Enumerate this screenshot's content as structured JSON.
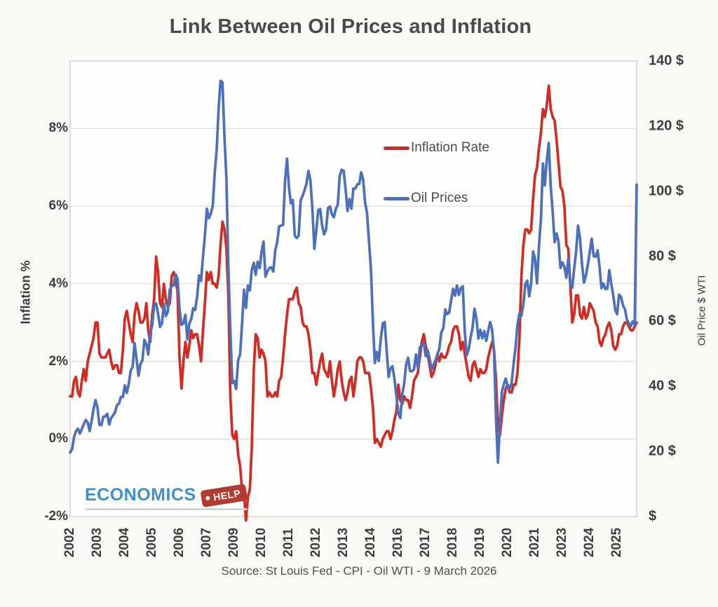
{
  "source_note": "Source: St Louis Fed - CPI - Oil WTI - 9 March 2026",
  "logo": {
    "brand": "ECONOMICS",
    "tag": "HELP"
  },
  "colors": {
    "inflation_line": "#d02b24",
    "oil_line": "#4c70ba",
    "logo_blue": "#3e8fcb",
    "logo_tag_red": "#b23a30",
    "grid": "#dadada",
    "frame": "#cfcfcf",
    "plot_fill": "#fefefc"
  },
  "chart_data": {
    "type": "line",
    "title": "Link Between Oil Prices and Inflation",
    "frequency": "monthly",
    "x_start": "2002-01",
    "x_end": "2026-03",
    "grid": "horizontal",
    "legend_position": "inside-top-right",
    "x_tick_labels": [
      "2002",
      "2003",
      "2004",
      "2005",
      "2006",
      "2007",
      "2009",
      "2010",
      "2011",
      "2012",
      "2013",
      "2014",
      "2016",
      "2017",
      "2018",
      "2019",
      "2020",
      "2021",
      "2023",
      "2024",
      "2025"
    ],
    "x_tick_interval_months": 14,
    "left_axis": {
      "label": "Inflation %",
      "min": -2,
      "max": 9.74,
      "tick_values": [
        8,
        6,
        4,
        2,
        0,
        -2
      ],
      "tick_labels": [
        "8%",
        "6%",
        "4%",
        "2%",
        "0%",
        "-2%"
      ]
    },
    "right_axis": {
      "label": "Oil Price $ WTI",
      "min": 0,
      "max": 140,
      "tick_values": [
        140,
        120,
        100,
        80,
        60,
        40,
        20,
        0
      ],
      "tick_labels": [
        "140 $",
        "120 $",
        "100 $",
        "80 $",
        "60 $",
        "40 $",
        "20 $",
        "$"
      ]
    },
    "series": [
      {
        "name": "Inflation Rate",
        "axis": "left",
        "color": "#d02b24",
        "values": [
          1.1,
          1.1,
          1.5,
          1.6,
          1.2,
          1.1,
          1.5,
          1.8,
          1.5,
          2.0,
          2.2,
          2.4,
          2.6,
          3.0,
          3.0,
          2.2,
          2.1,
          2.1,
          2.1,
          2.2,
          2.3,
          2.0,
          1.8,
          1.9,
          1.9,
          1.7,
          1.7,
          2.3,
          3.1,
          3.3,
          3.0,
          2.7,
          2.5,
          3.2,
          3.5,
          3.3,
          3.0,
          3.0,
          3.1,
          3.5,
          2.8,
          2.5,
          3.2,
          3.6,
          4.7,
          4.3,
          3.5,
          3.4,
          4.0,
          3.6,
          3.4,
          3.5,
          4.2,
          4.3,
          4.1,
          3.8,
          2.1,
          1.3,
          2.0,
          2.5,
          2.1,
          2.4,
          2.8,
          2.6,
          2.7,
          2.7,
          2.4,
          2.0,
          2.8,
          3.5,
          4.3,
          4.1,
          4.3,
          4.0,
          4.0,
          3.9,
          4.2,
          5.0,
          5.6,
          5.4,
          4.9,
          3.7,
          1.1,
          0.1,
          0.0,
          0.2,
          -0.4,
          -0.7,
          -1.3,
          -1.4,
          -2.1,
          -1.5,
          -1.3,
          -0.2,
          1.8,
          2.7,
          2.6,
          2.1,
          2.3,
          2.2,
          2.0,
          1.1,
          1.2,
          1.1,
          1.1,
          1.2,
          1.1,
          1.5,
          1.6,
          2.1,
          2.7,
          3.2,
          3.6,
          3.6,
          3.6,
          3.8,
          3.9,
          3.5,
          3.4,
          3.0,
          2.9,
          2.9,
          2.7,
          2.3,
          1.7,
          1.7,
          1.4,
          1.7,
          2.0,
          2.2,
          1.8,
          1.7,
          1.6,
          2.0,
          1.5,
          1.1,
          1.4,
          1.8,
          2.0,
          1.5,
          1.2,
          1.0,
          1.2,
          1.5,
          1.6,
          1.1,
          1.5,
          2.0,
          2.1,
          2.1,
          2.0,
          1.7,
          1.7,
          1.7,
          1.3,
          0.8,
          -0.1,
          0.0,
          -0.1,
          -0.2,
          0.0,
          0.1,
          0.2,
          0.2,
          0.0,
          0.2,
          0.5,
          0.7,
          1.4,
          1.0,
          0.9,
          1.1,
          1.0,
          1.0,
          0.8,
          1.1,
          1.5,
          1.6,
          1.7,
          2.1,
          2.5,
          2.7,
          2.4,
          2.2,
          1.9,
          1.6,
          1.7,
          1.9,
          2.2,
          2.0,
          2.2,
          2.1,
          2.1,
          2.2,
          2.4,
          2.5,
          2.8,
          2.9,
          2.9,
          2.7,
          2.3,
          2.5,
          2.2,
          1.9,
          1.6,
          1.5,
          1.9,
          2.0,
          1.8,
          1.6,
          1.8,
          1.7,
          1.7,
          1.8,
          2.1,
          2.3,
          2.5,
          2.3,
          1.5,
          0.3,
          0.1,
          0.6,
          1.0,
          1.3,
          1.4,
          1.2,
          1.2,
          1.4,
          1.4,
          1.7,
          2.6,
          4.2,
          5.0,
          5.4,
          5.4,
          5.3,
          5.4,
          6.2,
          6.8,
          7.0,
          7.5,
          7.9,
          8.5,
          8.3,
          8.6,
          9.1,
          8.5,
          8.3,
          8.2,
          7.7,
          7.1,
          6.5,
          6.4,
          6.0,
          5.0,
          4.9,
          4.0,
          3.0,
          3.2,
          3.7,
          3.7,
          3.2,
          3.1,
          3.4,
          3.1,
          3.2,
          3.5,
          3.4,
          3.3,
          3.0,
          2.9,
          2.5,
          2.4,
          2.6,
          2.7,
          2.9,
          3.0,
          2.8,
          2.4,
          2.3,
          2.4,
          2.7,
          2.7,
          2.9,
          3.0,
          3.0,
          2.9,
          2.8,
          2.8,
          2.9,
          3.0
        ]
      },
      {
        "name": "Oil Prices",
        "axis": "right",
        "color": "#4c70ba",
        "values": [
          19.7,
          20.7,
          24.4,
          26.3,
          27.0,
          25.5,
          26.9,
          28.4,
          29.7,
          28.9,
          26.3,
          29.4,
          33.0,
          35.8,
          33.5,
          28.2,
          28.1,
          30.7,
          30.8,
          31.6,
          28.3,
          30.3,
          31.1,
          32.1,
          34.3,
          34.7,
          36.8,
          36.7,
          40.3,
          38.0,
          40.7,
          44.9,
          46.0,
          53.3,
          48.5,
          43.3,
          46.8,
          48.0,
          54.3,
          53.0,
          49.8,
          56.4,
          58.7,
          65.0,
          65.5,
          62.4,
          58.3,
          59.4,
          65.5,
          61.6,
          62.9,
          69.7,
          70.9,
          71.0,
          74.4,
          73.1,
          63.9,
          58.9,
          59.4,
          62.0,
          54.5,
          59.3,
          60.6,
          64.0,
          63.5,
          67.5,
          74.1,
          72.4,
          79.9,
          86.2,
          94.6,
          91.7,
          93.0,
          95.4,
          105.5,
          112.6,
          125.4,
          133.9,
          133.4,
          116.7,
          103.9,
          76.7,
          57.4,
          41.0,
          41.7,
          39.2,
          48.0,
          49.8,
          59.2,
          69.7,
          64.1,
          71.0,
          69.5,
          75.8,
          78.0,
          74.3,
          78.3,
          76.4,
          81.3,
          84.5,
          73.7,
          75.4,
          76.4,
          76.6,
          75.3,
          81.9,
          84.3,
          89.2,
          89.4,
          89.6,
          103.0,
          110.0,
          101.3,
          96.3,
          97.3,
          86.3,
          85.6,
          86.4,
          97.2,
          98.6,
          100.3,
          102.3,
          106.2,
          103.3,
          94.7,
          82.3,
          87.9,
          94.1,
          94.5,
          89.5,
          86.7,
          88.2,
          94.8,
          95.3,
          92.9,
          92.0,
          94.5,
          95.8,
          104.7,
          106.6,
          106.3,
          100.5,
          93.9,
          97.6,
          94.6,
          100.8,
          100.8,
          102.1,
          102.2,
          105.8,
          103.6,
          96.5,
          93.2,
          84.4,
          75.8,
          59.3,
          47.2,
          50.6,
          47.8,
          54.5,
          59.3,
          59.8,
          51.2,
          42.9,
          45.5,
          46.2,
          42.4,
          37.2,
          31.7,
          30.3,
          37.6,
          40.8,
          46.7,
          48.8,
          44.7,
          44.7,
          45.2,
          49.8,
          45.7,
          52.0,
          52.5,
          53.5,
          49.3,
          51.1,
          48.5,
          45.2,
          46.6,
          48.0,
          49.8,
          51.6,
          56.6,
          57.9,
          63.7,
          62.2,
          62.7,
          66.3,
          70.0,
          67.9,
          71.0,
          68.1,
          70.2,
          70.8,
          57.0,
          49.5,
          51.4,
          55.0,
          58.2,
          63.9,
          60.8,
          54.7,
          57.4,
          54.8,
          57.0,
          54.0,
          57.0,
          59.8,
          57.5,
          50.5,
          29.9,
          16.6,
          28.6,
          38.3,
          40.7,
          42.4,
          39.6,
          39.4,
          41.0,
          47.0,
          52.0,
          59.0,
          62.4,
          61.7,
          65.2,
          71.4,
          72.5,
          67.7,
          71.6,
          81.5,
          79.2,
          71.7,
          83.2,
          91.6,
          108.5,
          101.8,
          109.5,
          114.8,
          101.6,
          93.7,
          84.3,
          87.0,
          84.4,
          76.4,
          78.1,
          76.8,
          73.4,
          79.4,
          71.6,
          70.3,
          76.0,
          81.4,
          89.4,
          85.5,
          77.7,
          71.9,
          74.0,
          77.3,
          81.3,
          85.4,
          80.0,
          79.8,
          81.8,
          76.7,
          70.2,
          71.6,
          69.9,
          70.1,
          75.7,
          71.5,
          68.0,
          63.5,
          62.2,
          68.2,
          67.5,
          64.9,
          63.7,
          60.5,
          59.5,
          58.5,
          60.0,
          59.0,
          102.0
        ]
      }
    ]
  }
}
